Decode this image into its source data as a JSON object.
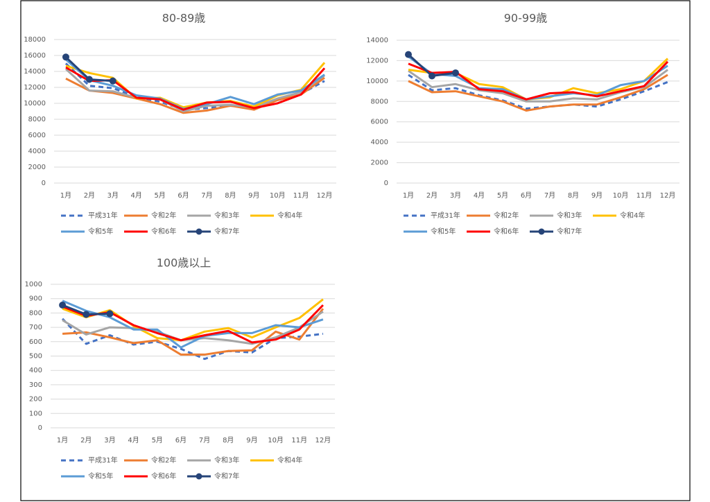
{
  "chart_data": [
    {
      "type": "line",
      "title": "80-89歳",
      "categories": [
        "1月",
        "2月",
        "3月",
        "4月",
        "5月",
        "6月",
        "7月",
        "8月",
        "9月",
        "10月",
        "11月",
        "12月"
      ],
      "ylim": [
        0,
        18000
      ],
      "yticks": [
        0,
        2000,
        4000,
        6000,
        8000,
        10000,
        12000,
        14000,
        16000,
        18000
      ],
      "grid": true,
      "series": [
        {
          "name": "平成31年",
          "color": "#4472c4",
          "line_style": "dashed",
          "values": [
            15000,
            12200,
            11900,
            10800,
            10200,
            9200,
            9400,
            9700,
            9400,
            10000,
            11200,
            12800
          ]
        },
        {
          "name": "令和2年",
          "color": "#ed7d31",
          "values": [
            13100,
            11600,
            11300,
            10600,
            9900,
            8800,
            9100,
            9700,
            9200,
            10400,
            11100,
            13200
          ]
        },
        {
          "name": "令和3年",
          "color": "#a5a5a5",
          "values": [
            14300,
            11600,
            11500,
            10700,
            10500,
            9000,
            9700,
            9800,
            9500,
            10600,
            11400,
            13500
          ]
        },
        {
          "name": "令和4年",
          "color": "#ffc000",
          "values": [
            14700,
            13800,
            13200,
            10600,
            10700,
            9500,
            10100,
            10300,
            9600,
            11000,
            11700,
            15100
          ]
        },
        {
          "name": "令和5年",
          "color": "#5b9bd5",
          "values": [
            15500,
            12900,
            12200,
            11000,
            10600,
            9300,
            9900,
            10800,
            9900,
            11100,
            11600,
            13600
          ]
        },
        {
          "name": "令和6年",
          "color": "#ff0000",
          "values": [
            14500,
            12800,
            12900,
            10700,
            10500,
            9200,
            10100,
            10200,
            9400,
            10000,
            11100,
            14400
          ]
        },
        {
          "name": "令和7年",
          "color": "#264478",
          "markers": true,
          "values": [
            15800,
            13000,
            12800,
            null,
            null,
            null,
            null,
            null,
            null,
            null,
            null,
            null
          ]
        }
      ]
    },
    {
      "type": "line",
      "title": "90-99歳",
      "categories": [
        "1月",
        "2月",
        "3月",
        "4月",
        "5月",
        "6月",
        "7月",
        "8月",
        "9月",
        "10月",
        "11月",
        "12月"
      ],
      "ylim": [
        0,
        14000
      ],
      "yticks": [
        0,
        2000,
        4000,
        6000,
        8000,
        10000,
        12000,
        14000
      ],
      "grid": true,
      "series": [
        {
          "name": "平成31年",
          "color": "#4472c4",
          "line_style": "dashed",
          "values": [
            10600,
            9100,
            9300,
            8600,
            8100,
            7300,
            7500,
            7700,
            7500,
            8200,
            9000,
            9900
          ]
        },
        {
          "name": "令和2年",
          "color": "#ed7d31",
          "values": [
            10000,
            8900,
            9000,
            8500,
            8000,
            7100,
            7500,
            7700,
            7700,
            8400,
            9200,
            10600
          ]
        },
        {
          "name": "令和3年",
          "color": "#a5a5a5",
          "values": [
            11000,
            9400,
            9700,
            9100,
            8800,
            8000,
            8000,
            8300,
            8200,
            8900,
            9400,
            11100
          ]
        },
        {
          "name": "令和4年",
          "color": "#ffc000",
          "values": [
            11100,
            10800,
            10800,
            9700,
            9400,
            8200,
            8400,
            9300,
            8800,
            9200,
            10000,
            12200
          ]
        },
        {
          "name": "令和5年",
          "color": "#5b9bd5",
          "values": [
            12400,
            10700,
            10500,
            9300,
            9200,
            8200,
            8500,
            8800,
            8600,
            9600,
            10000,
            11500
          ]
        },
        {
          "name": "令和6年",
          "color": "#ff0000",
          "values": [
            11700,
            10800,
            10900,
            9200,
            9000,
            8200,
            8800,
            8900,
            8500,
            9000,
            9500,
            11900
          ]
        },
        {
          "name": "令和7年",
          "color": "#264478",
          "markers": true,
          "values": [
            12600,
            10500,
            10800,
            null,
            null,
            null,
            null,
            null,
            null,
            null,
            null,
            null
          ]
        }
      ]
    },
    {
      "type": "line",
      "title": "100歳以上",
      "categories": [
        "1月",
        "2月",
        "3月",
        "4月",
        "5月",
        "6月",
        "7月",
        "8月",
        "9月",
        "10月",
        "11月",
        "12月"
      ],
      "ylim": [
        0,
        1000
      ],
      "yticks": [
        0,
        100,
        200,
        300,
        400,
        500,
        600,
        700,
        800,
        900,
        1000
      ],
      "grid": true,
      "series": [
        {
          "name": "平成31年",
          "color": "#4472c4",
          "line_style": "dashed",
          "values": [
            760,
            585,
            645,
            580,
            600,
            550,
            480,
            535,
            525,
            625,
            635,
            655
          ]
        },
        {
          "name": "令和2年",
          "color": "#ed7d31",
          "values": [
            655,
            665,
            630,
            590,
            610,
            510,
            510,
            535,
            540,
            670,
            615,
            830
          ]
        },
        {
          "name": "令和3年",
          "color": "#a5a5a5",
          "values": [
            750,
            650,
            700,
            695,
            670,
            610,
            625,
            610,
            585,
            630,
            700,
            810
          ]
        },
        {
          "name": "令和4年",
          "color": "#ffc000",
          "values": [
            830,
            770,
            820,
            710,
            625,
            610,
            670,
            695,
            630,
            700,
            765,
            895
          ]
        },
        {
          "name": "令和5年",
          "color": "#5b9bd5",
          "values": [
            885,
            815,
            770,
            685,
            685,
            560,
            640,
            660,
            660,
            715,
            700,
            755
          ]
        },
        {
          "name": "令和6年",
          "color": "#ff0000",
          "values": [
            845,
            780,
            805,
            715,
            660,
            610,
            645,
            675,
            595,
            615,
            685,
            855
          ]
        },
        {
          "name": "令和7年",
          "color": "#264478",
          "markers": true,
          "values": [
            855,
            790,
            795,
            null,
            null,
            null,
            null,
            null,
            null,
            null,
            null,
            null
          ]
        }
      ]
    }
  ]
}
